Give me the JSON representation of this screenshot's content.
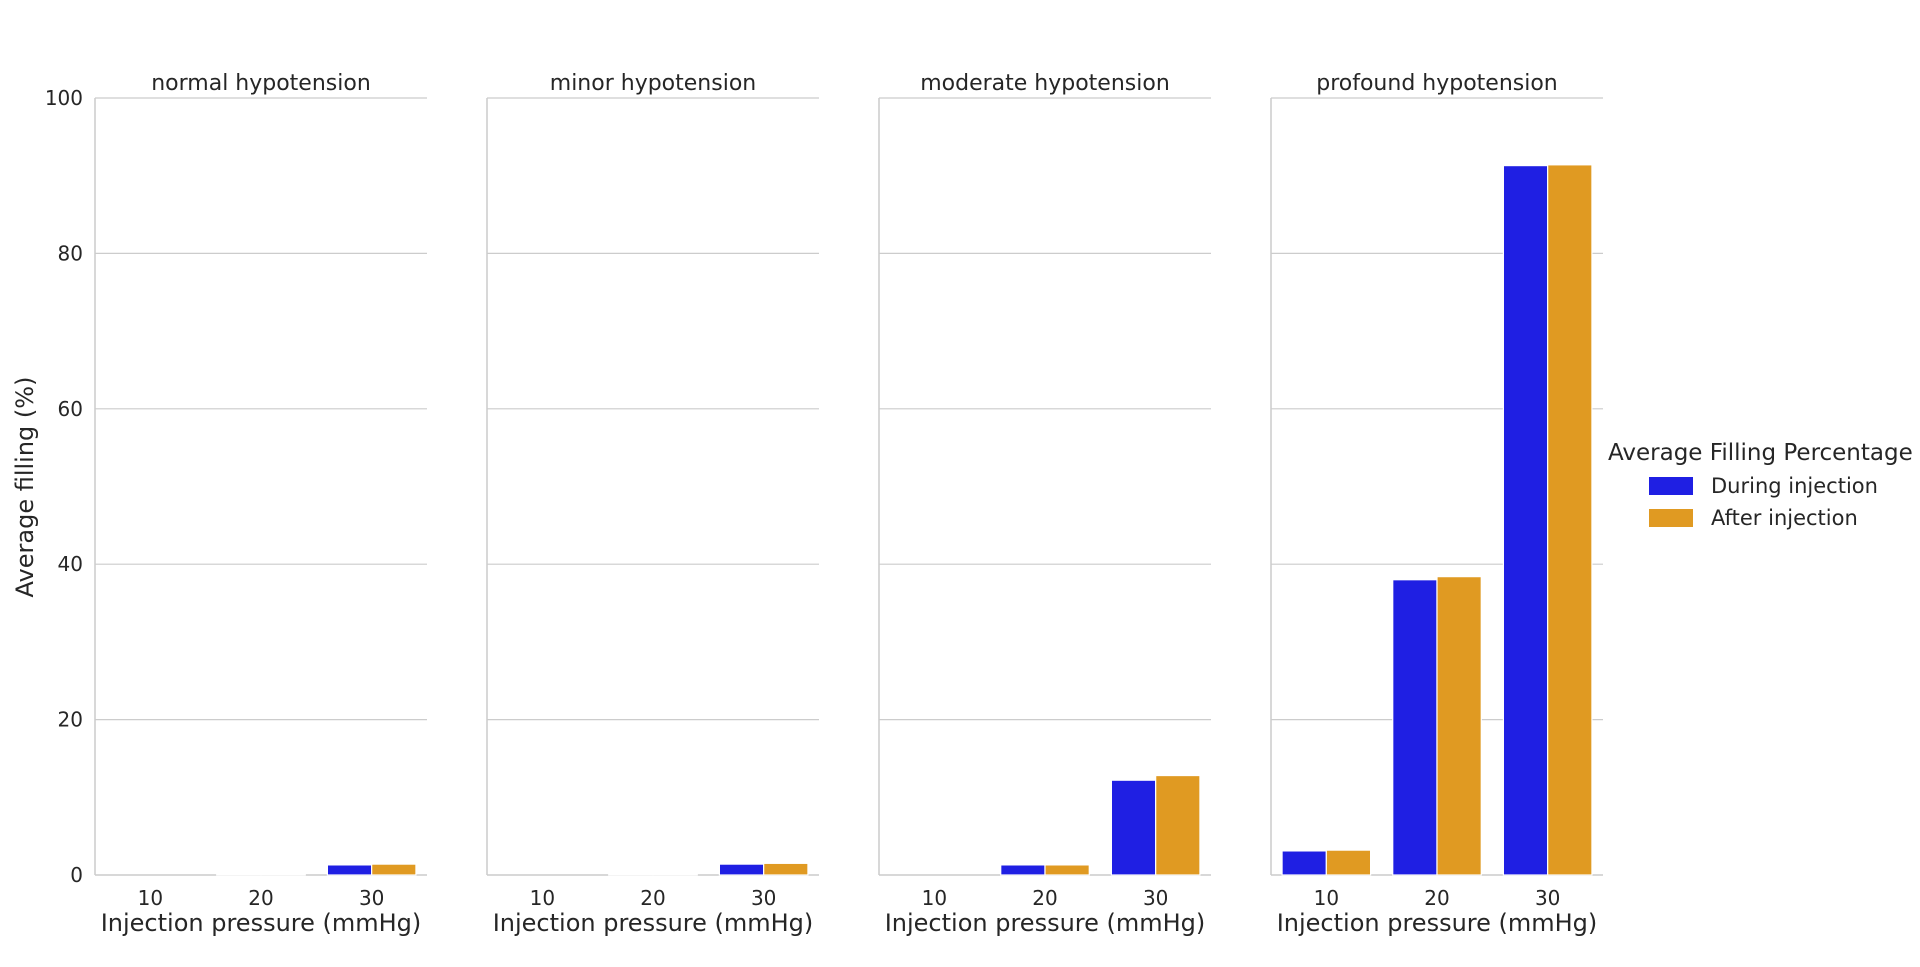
{
  "chart_data": {
    "type": "bar",
    "ylabel": "Average filling (%)",
    "xlabel": "Injection pressure (mmHg)",
    "ylim": [
      0,
      100
    ],
    "yticks": [
      "0",
      "20",
      "40",
      "60",
      "80",
      "100"
    ],
    "grid": "horizontal",
    "legend": {
      "title": "Average Filling Percentage",
      "placement": "right"
    },
    "categories": [
      "10",
      "20",
      "30"
    ],
    "series_styles": [
      {
        "name": "During injection",
        "color": "#1f1fe3"
      },
      {
        "name": "After injection",
        "color": "#e09a22"
      }
    ],
    "panels": [
      {
        "title": "normal hypotension",
        "series": [
          {
            "name": "During injection",
            "values": [
              0.0,
              0.1,
              1.3
            ]
          },
          {
            "name": "After injection",
            "values": [
              0.0,
              0.1,
              1.4
            ]
          }
        ]
      },
      {
        "title": "minor hypotension",
        "series": [
          {
            "name": "During injection",
            "values": [
              0.0,
              0.1,
              1.4
            ]
          },
          {
            "name": "After injection",
            "values": [
              0.0,
              0.1,
              1.5
            ]
          }
        ]
      },
      {
        "title": "moderate hypotension",
        "series": [
          {
            "name": "During injection",
            "values": [
              0.0,
              1.3,
              12.2
            ]
          },
          {
            "name": "After injection",
            "values": [
              0.0,
              1.3,
              12.8
            ]
          }
        ]
      },
      {
        "title": "profound hypotension",
        "series": [
          {
            "name": "During injection",
            "values": [
              3.1,
              38.0,
              91.3
            ]
          },
          {
            "name": "After injection",
            "values": [
              3.2,
              38.4,
              91.4
            ]
          }
        ]
      }
    ]
  }
}
